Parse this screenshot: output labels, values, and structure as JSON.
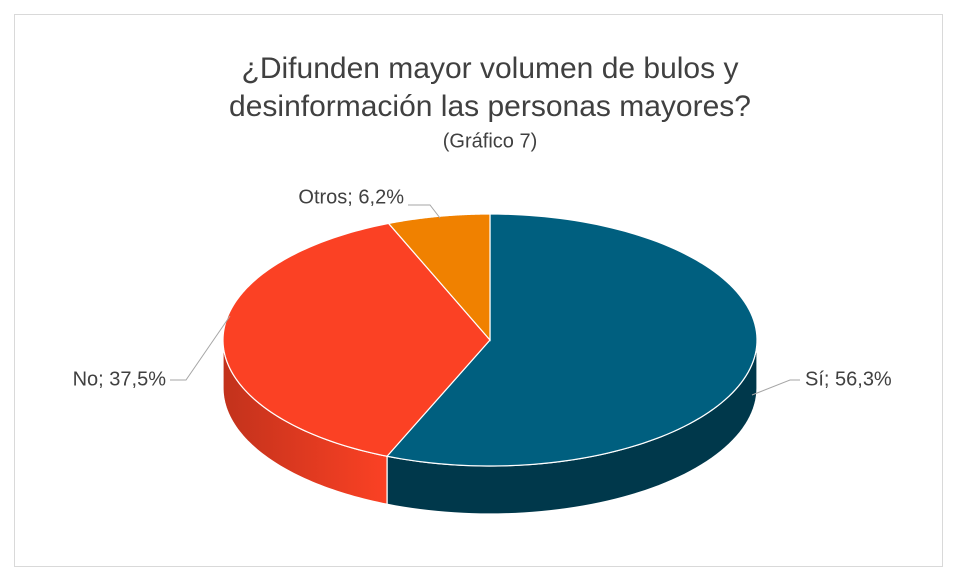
{
  "chart_data": {
    "type": "pie3d",
    "title": [
      "¿Difunden mayor volumen de bulos y",
      "desinformación las personas mayores?"
    ],
    "subtitle": "(Gráfico 7)",
    "categories": [
      "Sí",
      "No",
      "Otros"
    ],
    "values": [
      56.3,
      37.5,
      6.2
    ],
    "value_labels": [
      "Sí; 56,3%",
      "No; 37,5%",
      "Otros; 6,2%"
    ],
    "colors": [
      "#005f7f",
      "#fb4124",
      "#f08100"
    ],
    "side_colors": [
      "#00384b",
      "#c2321c",
      "#b96300"
    ]
  }
}
